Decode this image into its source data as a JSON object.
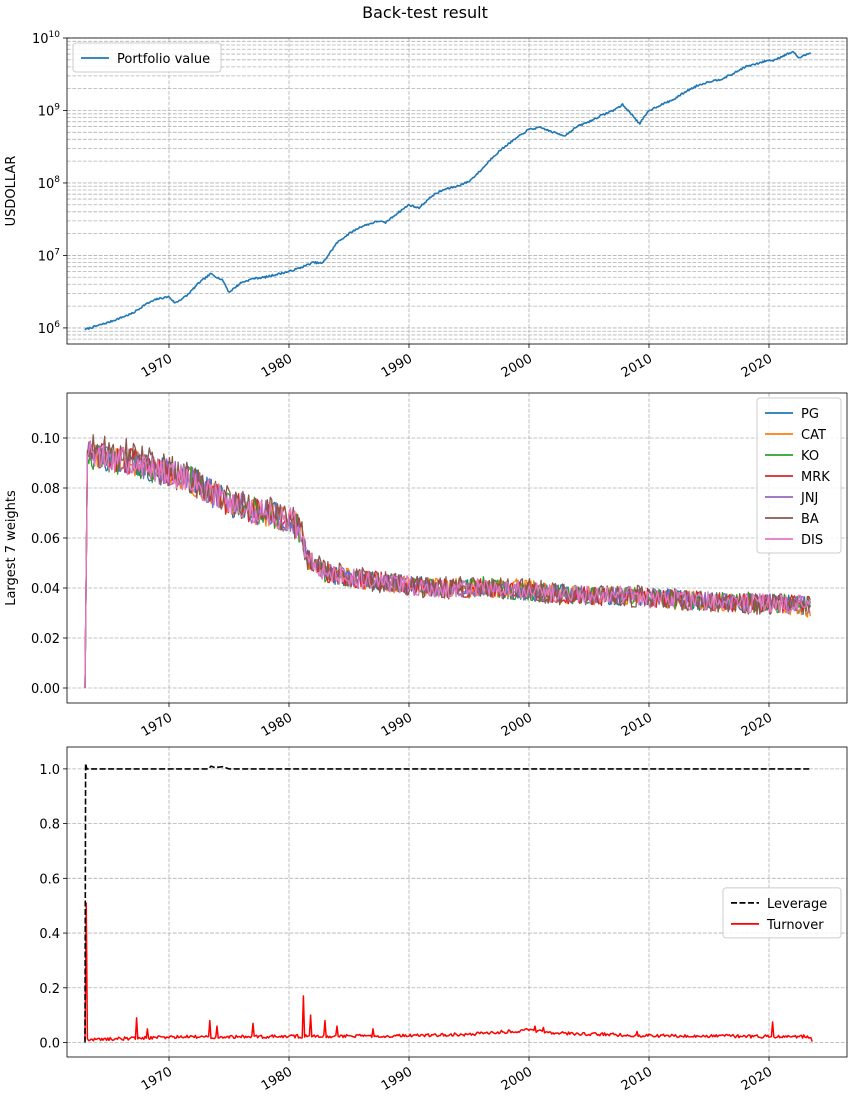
{
  "figure": {
    "title": "Back-test result"
  },
  "chart_data": [
    {
      "type": "line",
      "ylabel": "USDOLLAR",
      "yscale": "log",
      "ylim": [
        600000,
        10000000000
      ],
      "xlim": [
        1961.5,
        2026.5
      ],
      "x_ticks": [
        "1970",
        "1980",
        "1990",
        "2000",
        "2010",
        "2020"
      ],
      "y_ticks": [
        "10^6",
        "10^7",
        "10^8",
        "10^9",
        "10^10"
      ],
      "grid": true,
      "legend": "upper-left",
      "series": [
        {
          "name": "Portfolio value",
          "color": "#1f77b4",
          "x": [
            1963.0,
            1965.0,
            1967.0,
            1968.0,
            1969.0,
            1970.0,
            1970.5,
            1971.5,
            1972.5,
            1973.5,
            1974.5,
            1975.0,
            1976.0,
            1977.0,
            1978.0,
            1979.0,
            1980.0,
            1981.0,
            1982.0,
            1982.8,
            1984.0,
            1985.0,
            1986.0,
            1987.5,
            1988.0,
            1989.0,
            1990.0,
            1990.8,
            1992.0,
            1993.0,
            1994.0,
            1995.0,
            1996.0,
            1997.0,
            1998.0,
            1999.0,
            2000.0,
            2001.0,
            2002.0,
            2003.0,
            2004.0,
            2005.0,
            2006.0,
            2007.0,
            2007.8,
            2008.8,
            2009.2,
            2010.0,
            2011.0,
            2012.0,
            2013.0,
            2014.0,
            2015.0,
            2016.0,
            2017.0,
            2018.0,
            2019.0,
            2020.0,
            2020.2,
            2021.0,
            2022.0,
            2022.5,
            2023.5
          ],
          "values": [
            950000,
            1200000,
            1600000,
            2100000,
            2500000,
            2700000,
            2200000,
            2800000,
            4200000,
            5600000,
            4500000,
            3100000,
            4200000,
            4800000,
            5000000,
            5500000,
            6000000,
            6800000,
            8000000,
            7800000,
            15000000,
            20000000,
            25000000,
            30000000,
            28000000,
            38000000,
            50000000,
            45000000,
            68000000,
            82000000,
            90000000,
            105000000,
            150000000,
            230000000,
            320000000,
            420000000,
            550000000,
            580000000,
            500000000,
            450000000,
            600000000,
            700000000,
            850000000,
            1000000000,
            1200000000,
            800000000,
            650000000,
            1000000000,
            1200000000,
            1400000000,
            1800000000,
            2200000000,
            2500000000,
            2700000000,
            3200000000,
            4000000000,
            4400000000,
            5000000000,
            4800000000,
            5500000000,
            6500000000,
            5300000000,
            6300000000
          ]
        }
      ]
    },
    {
      "type": "line",
      "ylabel": "Largest 7 weights",
      "ylim": [
        -0.006,
        0.118
      ],
      "xlim": [
        1961.5,
        2026.5
      ],
      "x_ticks": [
        "1970",
        "1980",
        "1990",
        "2000",
        "2010",
        "2020"
      ],
      "y_ticks": [
        "0.00",
        "0.02",
        "0.04",
        "0.06",
        "0.08",
        "0.10"
      ],
      "grid": true,
      "legend": "upper-right",
      "x": [
        1963.0,
        1963.2,
        1963.5,
        1965.0,
        1967.0,
        1969.0,
        1971.0,
        1972.5,
        1973.5,
        1975.0,
        1977.0,
        1979.0,
        1980.5,
        1981.0,
        1981.5,
        1983.0,
        1985.0,
        1987.0,
        1990.0,
        1993.0,
        1996.0,
        1999.0,
        2002.0,
        2005.0,
        2008.0,
        2011.0,
        2014.0,
        2017.0,
        2020.0,
        2023.5
      ],
      "series": [
        {
          "name": "PG",
          "color": "#1f77b4",
          "jitter": 0.0055,
          "values": [
            0,
            0.095,
            0.093,
            0.092,
            0.09,
            0.087,
            0.085,
            0.082,
            0.078,
            0.074,
            0.071,
            0.069,
            0.066,
            0.062,
            0.052,
            0.046,
            0.044,
            0.043,
            0.041,
            0.04,
            0.04,
            0.039,
            0.038,
            0.037,
            0.037,
            0.036,
            0.035,
            0.034,
            0.034,
            0.033
          ]
        },
        {
          "name": "CAT",
          "color": "#ff7f0e",
          "jitter": 0.0055,
          "values": [
            0,
            0.096,
            0.094,
            0.092,
            0.09,
            0.087,
            0.084,
            0.081,
            0.078,
            0.074,
            0.071,
            0.069,
            0.066,
            0.062,
            0.052,
            0.046,
            0.044,
            0.043,
            0.041,
            0.04,
            0.04,
            0.04,
            0.038,
            0.037,
            0.037,
            0.035,
            0.035,
            0.034,
            0.034,
            0.032
          ]
        },
        {
          "name": "KO",
          "color": "#2ca02c",
          "jitter": 0.0055,
          "values": [
            0,
            0.094,
            0.093,
            0.091,
            0.09,
            0.087,
            0.085,
            0.082,
            0.078,
            0.074,
            0.071,
            0.068,
            0.066,
            0.062,
            0.052,
            0.046,
            0.044,
            0.043,
            0.041,
            0.04,
            0.041,
            0.039,
            0.038,
            0.037,
            0.037,
            0.036,
            0.035,
            0.035,
            0.034,
            0.033
          ]
        },
        {
          "name": "MRK",
          "color": "#d62728",
          "jitter": 0.0055,
          "values": [
            0,
            0.095,
            0.093,
            0.092,
            0.091,
            0.087,
            0.085,
            0.082,
            0.078,
            0.074,
            0.071,
            0.069,
            0.066,
            0.062,
            0.052,
            0.046,
            0.044,
            0.043,
            0.041,
            0.04,
            0.04,
            0.039,
            0.038,
            0.037,
            0.036,
            0.036,
            0.035,
            0.034,
            0.034,
            0.033
          ]
        },
        {
          "name": "JNJ",
          "color": "#9467bd",
          "jitter": 0.0055,
          "values": [
            0,
            0.095,
            0.093,
            0.092,
            0.09,
            0.087,
            0.085,
            0.082,
            0.078,
            0.074,
            0.071,
            0.069,
            0.066,
            0.062,
            0.052,
            0.046,
            0.044,
            0.043,
            0.041,
            0.04,
            0.04,
            0.039,
            0.038,
            0.037,
            0.037,
            0.036,
            0.035,
            0.034,
            0.034,
            0.033
          ]
        },
        {
          "name": "BA",
          "color": "#8c564b",
          "jitter": 0.0065,
          "values": [
            0,
            0.097,
            0.095,
            0.094,
            0.093,
            0.088,
            0.085,
            0.082,
            0.078,
            0.075,
            0.072,
            0.069,
            0.066,
            0.062,
            0.052,
            0.047,
            0.045,
            0.043,
            0.041,
            0.04,
            0.04,
            0.04,
            0.038,
            0.037,
            0.037,
            0.036,
            0.035,
            0.034,
            0.034,
            0.033
          ]
        },
        {
          "name": "DIS",
          "color": "#e377c2",
          "jitter": 0.0055,
          "values": [
            0,
            0.094,
            0.093,
            0.092,
            0.09,
            0.087,
            0.085,
            0.082,
            0.078,
            0.074,
            0.071,
            0.069,
            0.066,
            0.062,
            0.052,
            0.046,
            0.044,
            0.043,
            0.041,
            0.04,
            0.04,
            0.039,
            0.038,
            0.037,
            0.037,
            0.036,
            0.035,
            0.034,
            0.034,
            0.033
          ]
        }
      ]
    },
    {
      "type": "line",
      "ylim": [
        -0.053,
        1.08
      ],
      "xlim": [
        1961.5,
        2026.5
      ],
      "x_ticks": [
        "1970",
        "1980",
        "1990",
        "2000",
        "2010",
        "2020"
      ],
      "y_ticks": [
        "0.0",
        "0.2",
        "0.4",
        "0.6",
        "0.8",
        "1.0"
      ],
      "grid": true,
      "legend": "center-right",
      "series": [
        {
          "name": "Leverage",
          "color": "#000000",
          "style": "dashed",
          "x": [
            1963.0,
            1963.05,
            1963.15,
            1963.4,
            1970.0,
            1973.3,
            1973.5,
            1973.8,
            1974.5,
            1975.0,
            1985.0,
            2023.5
          ],
          "values": [
            0,
            1.02,
            1.0,
            1.0,
            1.0,
            1.0,
            1.01,
            1.005,
            1.008,
            1.0,
            1.0,
            1.0
          ]
        },
        {
          "name": "Turnover",
          "color": "#ff0000",
          "style": "solid",
          "base": [
            [
              1963.0,
              0.01
            ],
            [
              1970.0,
              0.02
            ],
            [
              1980.0,
              0.022
            ],
            [
              1990.0,
              0.025
            ],
            [
              1995.0,
              0.03
            ],
            [
              2000.0,
              0.045
            ],
            [
              2002.0,
              0.035
            ],
            [
              2010.0,
              0.025
            ],
            [
              2020.0,
              0.022
            ],
            [
              2023.4,
              0.022
            ],
            [
              2023.6,
              0.005
            ]
          ],
          "spikes": [
            [
              1963.1,
              0.51
            ],
            [
              1967.3,
              0.09
            ],
            [
              1968.2,
              0.05
            ],
            [
              1973.4,
              0.08
            ],
            [
              1974.0,
              0.06
            ],
            [
              1977.0,
              0.07
            ],
            [
              1981.2,
              0.17
            ],
            [
              1981.8,
              0.1
            ],
            [
              1983.0,
              0.08
            ],
            [
              1984.0,
              0.06
            ],
            [
              1987.0,
              0.05
            ],
            [
              2000.5,
              0.06
            ],
            [
              2001.2,
              0.055
            ],
            [
              2009.0,
              0.04
            ],
            [
              2020.3,
              0.075
            ]
          ]
        }
      ]
    }
  ]
}
